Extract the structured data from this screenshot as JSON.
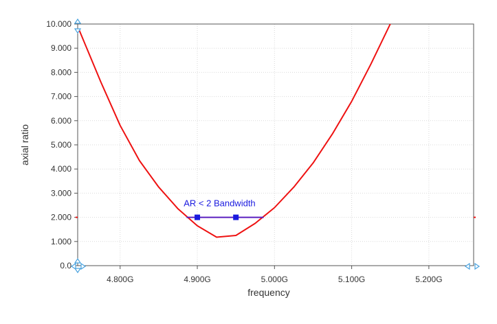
{
  "chart_data": {
    "type": "line",
    "title": "",
    "xlabel": "frequency",
    "ylabel": "axial ratio",
    "xlim": [
      4.745,
      5.258
    ],
    "ylim": [
      0,
      10
    ],
    "x_unit_suffix": "G",
    "x_ticks": [
      {
        "value": 4.8,
        "label": "4.800G"
      },
      {
        "value": 4.9,
        "label": "4.900G"
      },
      {
        "value": 5.0,
        "label": "5.000G"
      },
      {
        "value": 5.1,
        "label": "5.100G"
      },
      {
        "value": 5.2,
        "label": "5.200G"
      }
    ],
    "y_ticks": [
      {
        "value": 0,
        "label": "0.0"
      },
      {
        "value": 1,
        "label": "1.000"
      },
      {
        "value": 2,
        "label": "2.000"
      },
      {
        "value": 3,
        "label": "3.000"
      },
      {
        "value": 4,
        "label": "4.000"
      },
      {
        "value": 5,
        "label": "5.000"
      },
      {
        "value": 6,
        "label": "6.000"
      },
      {
        "value": 7,
        "label": "7.000"
      },
      {
        "value": 8,
        "label": "8.000"
      },
      {
        "value": 9,
        "label": "9.000"
      },
      {
        "value": 10,
        "label": "10.000"
      }
    ],
    "grid": true,
    "series": [
      {
        "color": "#ee1111",
        "x": [
          4.747,
          4.775,
          4.8,
          4.825,
          4.85,
          4.875,
          4.9,
          4.925,
          4.95,
          4.975,
          5.0,
          5.025,
          5.05,
          5.075,
          5.1,
          5.125,
          5.15,
          5.16
        ],
        "y": [
          9.75,
          7.6,
          5.8,
          4.35,
          3.25,
          2.35,
          1.65,
          1.18,
          1.25,
          1.75,
          2.4,
          3.25,
          4.25,
          5.45,
          6.8,
          8.35,
          10.0,
          10.6
        ]
      }
    ],
    "reference_line": {
      "y": 2.0,
      "color": "#ee1111"
    },
    "bandwidth_marker": {
      "label": "AR < 2 Bandwidth",
      "color": "#1a1adf",
      "line_color": "#5a1fbf",
      "y": 2.0,
      "x_start": 4.886,
      "x_end": 4.986,
      "points": [
        4.9,
        4.95
      ]
    },
    "colors": {
      "axis": "#555555",
      "grid": "#d9d9d9",
      "handle": "#4aa3df"
    }
  }
}
